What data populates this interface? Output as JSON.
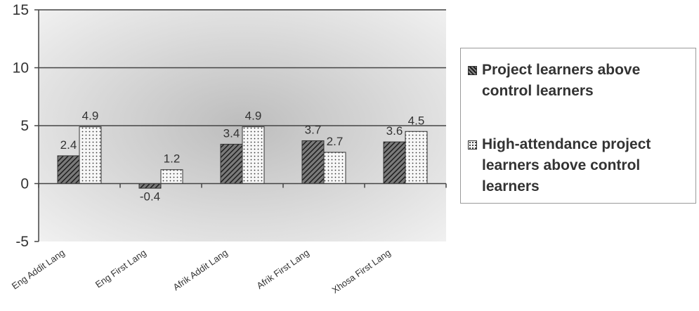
{
  "chart_data": {
    "type": "bar",
    "categories": [
      "Eng Addit Lang",
      "Eng First Lang",
      "Afrik Addit Lang",
      "Afrik First Lang",
      "Xhosa First Lang"
    ],
    "series": [
      {
        "name": "Project learners above control learners",
        "values": [
          2.4,
          -0.4,
          3.4,
          3.7,
          3.6
        ],
        "pattern": "diagonal-hatch"
      },
      {
        "name": "High-attendance project learners above control learners",
        "values": [
          4.9,
          1.2,
          4.9,
          2.7,
          4.5
        ],
        "pattern": "dotted"
      }
    ],
    "data_labels": [
      [
        "2.4",
        "-0.4",
        "3.4",
        "3.7",
        "3.6"
      ],
      [
        "4.9",
        "1.2",
        "4.9",
        "2.7",
        "4.5"
      ]
    ],
    "yticks": [
      "15",
      "10",
      "5",
      "0",
      "-5"
    ],
    "ylim": [
      -5,
      15
    ],
    "gridlines": [
      5,
      10,
      15
    ],
    "legend_position": "right",
    "title": "",
    "xlabel": "",
    "ylabel": "",
    "colors": {
      "bar_dark": "#2b2b2b",
      "bar_light": "#f4f4f4",
      "axis": "#444444",
      "plot_bg": "#e2e2e2"
    }
  }
}
